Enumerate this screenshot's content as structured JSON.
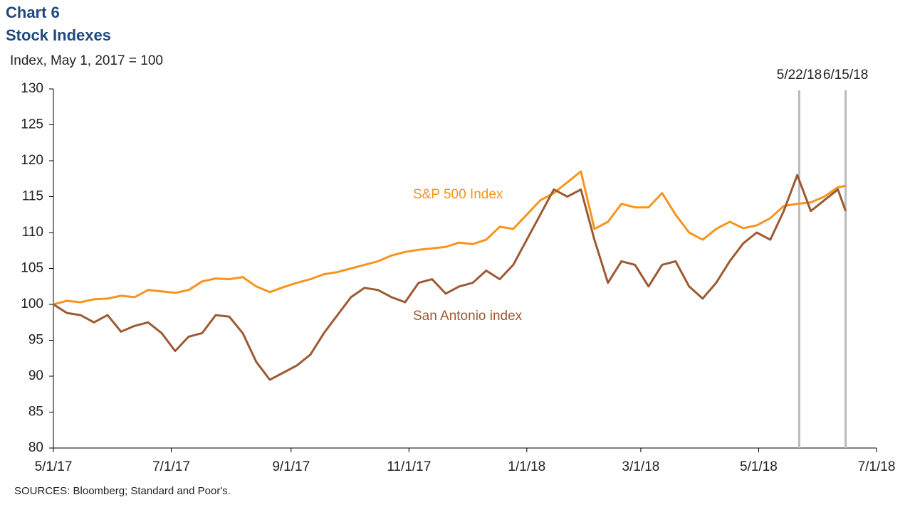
{
  "chart_data": {
    "type": "line",
    "title": "Chart 6",
    "subtitle": "Stock Indexes",
    "y_label": "Index, May 1, 2017 = 100",
    "source": "SOURCES: Bloomberg; Standard and Poor's.",
    "x": [
      "2017-05-01",
      "2017-05-08",
      "2017-05-15",
      "2017-05-22",
      "2017-05-29",
      "2017-06-05",
      "2017-06-12",
      "2017-06-19",
      "2017-06-26",
      "2017-07-03",
      "2017-07-10",
      "2017-07-17",
      "2017-07-24",
      "2017-07-31",
      "2017-08-07",
      "2017-08-14",
      "2017-08-21",
      "2017-08-28",
      "2017-09-04",
      "2017-09-11",
      "2017-09-18",
      "2017-09-25",
      "2017-10-02",
      "2017-10-09",
      "2017-10-16",
      "2017-10-23",
      "2017-10-30",
      "2017-11-06",
      "2017-11-13",
      "2017-11-20",
      "2017-11-27",
      "2017-12-04",
      "2017-12-11",
      "2017-12-18",
      "2017-12-25",
      "2018-01-01",
      "2018-01-08",
      "2018-01-15",
      "2018-01-22",
      "2018-01-29",
      "2018-02-05",
      "2018-02-12",
      "2018-02-19",
      "2018-02-26",
      "2018-03-05",
      "2018-03-12",
      "2018-03-19",
      "2018-03-26",
      "2018-04-02",
      "2018-04-09",
      "2018-04-16",
      "2018-04-23",
      "2018-04-30",
      "2018-05-07",
      "2018-05-14",
      "2018-05-21",
      "2018-05-28",
      "2018-06-04",
      "2018-06-11",
      "2018-06-15"
    ],
    "series": [
      {
        "name": "S&P 500 Index",
        "color": "#f7941d",
        "values": [
          100,
          100.5,
          100.3,
          100.7,
          100.8,
          101.2,
          101.0,
          102.0,
          101.8,
          101.6,
          102.0,
          103.2,
          103.6,
          103.5,
          103.8,
          102.5,
          101.7,
          102.4,
          103.0,
          103.5,
          104.2,
          104.5,
          105.0,
          105.5,
          106.0,
          106.8,
          107.3,
          107.6,
          107.8,
          108.0,
          108.6,
          108.4,
          109.0,
          110.8,
          110.5,
          112.5,
          114.5,
          115.5,
          117.0,
          118.5,
          110.5,
          111.5,
          114.0,
          113.5,
          113.5,
          115.5,
          112.5,
          110.0,
          109.0,
          110.5,
          111.5,
          110.6,
          111.0,
          112.0,
          113.7,
          114.0,
          114.2,
          115.0,
          116.3,
          116.5
        ]
      },
      {
        "name": "San Antonio index",
        "color": "#9c5a33",
        "values": [
          100,
          98.8,
          98.5,
          97.5,
          98.5,
          96.2,
          97.0,
          97.5,
          96.0,
          93.5,
          95.5,
          96.0,
          98.5,
          98.3,
          96.0,
          92.0,
          89.5,
          90.5,
          91.5,
          93.0,
          96.0,
          98.5,
          101.0,
          102.3,
          102.0,
          101.0,
          100.3,
          103.0,
          103.5,
          101.5,
          102.5,
          103.0,
          104.7,
          103.5,
          105.5,
          109.0,
          112.5,
          116.0,
          115.0,
          116.0,
          109.0,
          103.0,
          106.0,
          105.5,
          102.5,
          105.5,
          106.0,
          102.5,
          100.8,
          103.0,
          106.0,
          108.5,
          110.0,
          109.0,
          113.0,
          118.0,
          113.0,
          114.5,
          116.0,
          113.0
        ]
      }
    ],
    "xlim": [
      "2017-05-01",
      "2018-07-01"
    ],
    "xticks": [
      {
        "value": "2017-05-01",
        "label": "5/1/17"
      },
      {
        "value": "2017-07-01",
        "label": "7/1/17"
      },
      {
        "value": "2017-09-01",
        "label": "9/1/17"
      },
      {
        "value": "2017-11-01",
        "label": "11/1/17"
      },
      {
        "value": "2018-01-01",
        "label": "1/1/18"
      },
      {
        "value": "2018-03-01",
        "label": "3/1/18"
      },
      {
        "value": "2018-05-01",
        "label": "5/1/18"
      },
      {
        "value": "2018-07-01",
        "label": "7/1/18"
      }
    ],
    "ylim": [
      80,
      130
    ],
    "yticks": [
      80,
      85,
      90,
      95,
      100,
      105,
      110,
      115,
      120,
      125,
      130
    ],
    "annotations": [
      {
        "x": "2018-05-22",
        "label": "5/22/18"
      },
      {
        "x": "2018-06-15",
        "label": "6/15/18"
      }
    ]
  }
}
